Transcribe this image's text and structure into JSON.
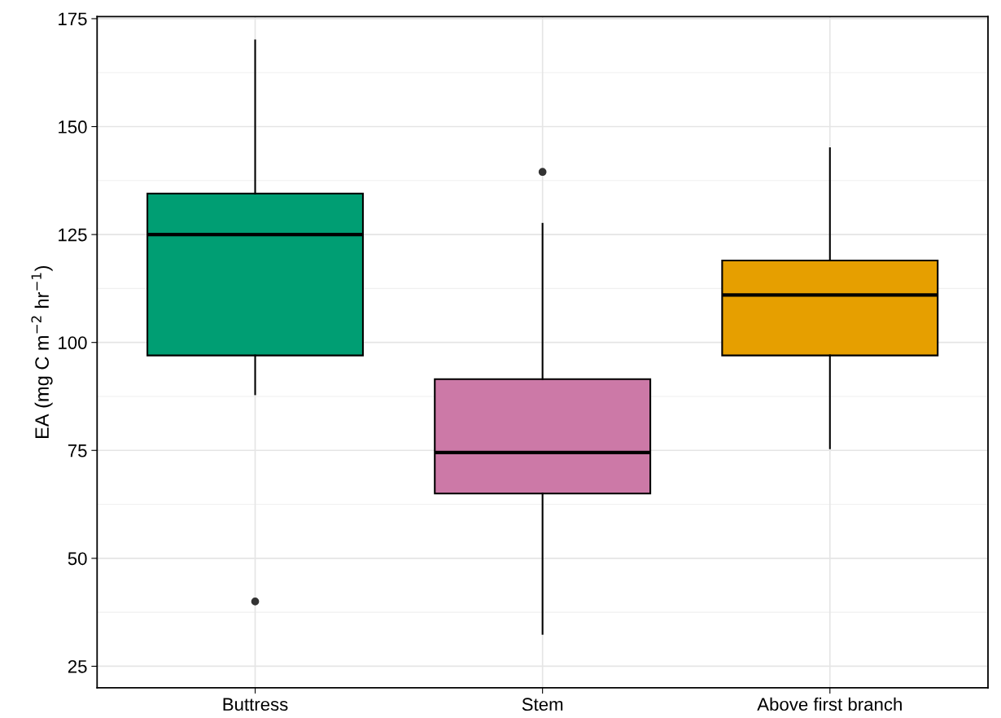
{
  "chart_data": {
    "type": "box",
    "categories": [
      "Buttress",
      "Stem",
      "Above first branch"
    ],
    "ylabel": "EA (mg C m$^{−2}$ hr$^{−1}$)",
    "colors": [
      "#009e73",
      "#cc79a7",
      "#e69f00"
    ],
    "boxes": [
      {
        "low": 88,
        "q1": 97,
        "median": 125,
        "q3": 134.5,
        "high": 170,
        "outliers": [
          40
        ]
      },
      {
        "low": 32.5,
        "q1": 65,
        "median": 74.5,
        "q3": 91.5,
        "high": 127.5,
        "outliers": [
          139.5
        ]
      },
      {
        "low": 75.5,
        "q1": 97,
        "median": 111,
        "q3": 119,
        "high": 145
      }
    ],
    "ylim": [
      20,
      175.5
    ],
    "yticks": [
      25,
      50,
      75,
      100,
      125,
      150,
      175
    ],
    "grid": true
  }
}
